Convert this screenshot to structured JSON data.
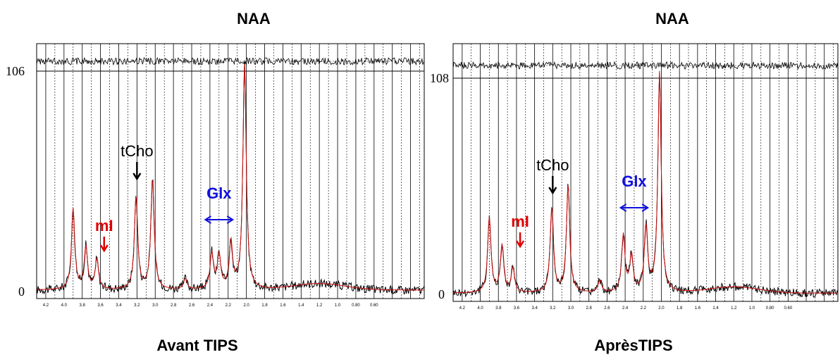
{
  "chart_data": [
    {
      "type": "line",
      "title": "NAA",
      "caption": "Avant TIPS",
      "y_ticks": [
        "106",
        "0"
      ],
      "ylim": [
        0,
        106
      ],
      "xlim": [
        4.3,
        0.05
      ],
      "x_tick_labels": [
        "4.2",
        "4.0",
        "3.8",
        "3.6",
        "3.4",
        "3.2",
        "3.0",
        "2.8",
        "2.6",
        "2.4",
        "2.2",
        "2.0",
        "1.8",
        "1.6",
        "1.4",
        "1.2",
        "1.0",
        "0.80",
        "0.60"
      ],
      "annotations": [
        {
          "text": "mI",
          "color": "#e00000",
          "arrow": "down",
          "ppm": 3.56
        },
        {
          "text": "tCho",
          "color": "#000000",
          "arrow": "down",
          "ppm": 3.2
        },
        {
          "text": "Glx",
          "color": "#1010e0",
          "arrow": "both",
          "ppm_range": [
            2.45,
            2.15
          ]
        }
      ],
      "peaks": [
        {
          "ppm": 3.9,
          "value": 38
        },
        {
          "ppm": 3.76,
          "value": 20
        },
        {
          "ppm": 3.64,
          "value": 14
        },
        {
          "ppm": 3.21,
          "value": 44
        },
        {
          "ppm": 3.03,
          "value": 52
        },
        {
          "ppm": 2.67,
          "value": 5
        },
        {
          "ppm": 2.38,
          "value": 17
        },
        {
          "ppm": 2.3,
          "value": 16
        },
        {
          "ppm": 2.17,
          "value": 22
        },
        {
          "ppm": 2.02,
          "value": 106
        }
      ],
      "baseline": 4
    },
    {
      "type": "line",
      "title": "NAA",
      "caption": "AprèsTIPS",
      "y_ticks": [
        "108",
        "0"
      ],
      "ylim": [
        0,
        108
      ],
      "xlim": [
        4.3,
        0.05
      ],
      "x_tick_labels": [
        "4.2",
        "4.0",
        "3.8",
        "3.6",
        "3.4",
        "3.2",
        "3.0",
        "2.8",
        "2.6",
        "2.4",
        "2.2",
        "2.0",
        "1.8",
        "1.6",
        "1.4",
        "1.2",
        "1.0",
        "0.80",
        "0.60"
      ],
      "annotations": [
        {
          "text": "mI",
          "color": "#e00000",
          "arrow": "down",
          "ppm": 3.56
        },
        {
          "text": "tCho",
          "color": "#000000",
          "arrow": "down",
          "ppm": 3.2
        },
        {
          "text": "Glx",
          "color": "#1010e0",
          "arrow": "both",
          "ppm_range": [
            2.45,
            2.15
          ]
        }
      ],
      "peaks": [
        {
          "ppm": 3.9,
          "value": 37
        },
        {
          "ppm": 3.76,
          "value": 23
        },
        {
          "ppm": 3.64,
          "value": 12
        },
        {
          "ppm": 3.21,
          "value": 42
        },
        {
          "ppm": 3.03,
          "value": 53
        },
        {
          "ppm": 2.68,
          "value": 6
        },
        {
          "ppm": 2.42,
          "value": 28
        },
        {
          "ppm": 2.33,
          "value": 18
        },
        {
          "ppm": 2.17,
          "value": 32
        },
        {
          "ppm": 2.02,
          "value": 108
        }
      ],
      "baseline": 4
    }
  ]
}
